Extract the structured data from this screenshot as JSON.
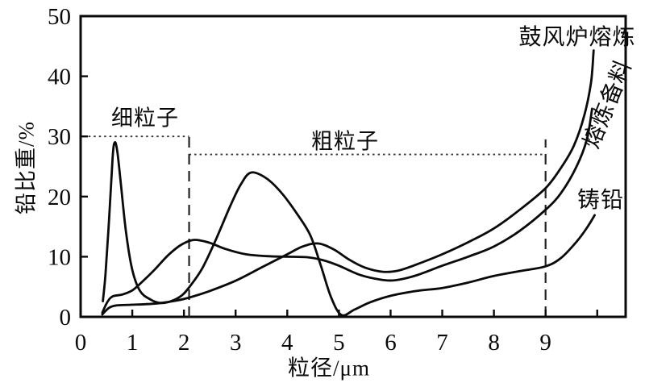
{
  "chart_data": {
    "type": "line",
    "title": "",
    "xlabel": "粒径/μm",
    "ylabel": "铅比重/%",
    "xlim": [
      0,
      10.55
    ],
    "ylim": [
      0,
      50
    ],
    "x_ticks": [
      0,
      1,
      2,
      3,
      4,
      5,
      6,
      7,
      8,
      9
    ],
    "x_unlabeled_ticks": [
      10
    ],
    "y_ticks": [
      0,
      10,
      20,
      30,
      40,
      50
    ],
    "grid": false,
    "legend_position": "labels-at-right-edge-of-curves",
    "line_color": "#0a0a0a",
    "series": [
      {
        "id": "blast-furnace-smelting",
        "name": "鼓风炉熔炼",
        "points": [
          [
            0.42,
            0.4
          ],
          [
            0.55,
            1.5
          ],
          [
            0.7,
            1.9
          ],
          [
            0.95,
            2.0
          ],
          [
            1.25,
            2.1
          ],
          [
            1.55,
            2.3
          ],
          [
            1.85,
            2.7
          ],
          [
            2.1,
            3.2
          ],
          [
            2.5,
            4.3
          ],
          [
            3.0,
            6.0
          ],
          [
            3.5,
            8.2
          ],
          [
            4.0,
            10.4
          ],
          [
            4.3,
            11.7
          ],
          [
            4.6,
            12.2
          ],
          [
            4.9,
            11.2
          ],
          [
            5.2,
            9.5
          ],
          [
            5.5,
            8.2
          ],
          [
            5.85,
            7.5
          ],
          [
            6.15,
            7.7
          ],
          [
            6.5,
            8.7
          ],
          [
            7.0,
            10.4
          ],
          [
            7.5,
            12.4
          ],
          [
            8.0,
            14.7
          ],
          [
            8.5,
            17.8
          ],
          [
            9.0,
            21.4
          ],
          [
            9.3,
            24.8
          ],
          [
            9.55,
            28.5
          ],
          [
            9.75,
            33.5
          ],
          [
            9.88,
            39.0
          ],
          [
            9.93,
            44.3
          ]
        ]
      },
      {
        "id": "smelting-preparation",
        "name": "熔炼备料",
        "points": [
          [
            0.42,
            0.7
          ],
          [
            0.52,
            2.5
          ],
          [
            0.62,
            3.4
          ],
          [
            0.8,
            3.7
          ],
          [
            1.0,
            4.4
          ],
          [
            1.2,
            5.9
          ],
          [
            1.45,
            8.0
          ],
          [
            1.7,
            10.3
          ],
          [
            1.95,
            12.0
          ],
          [
            2.2,
            12.8
          ],
          [
            2.5,
            12.3
          ],
          [
            2.8,
            11.3
          ],
          [
            3.2,
            10.4
          ],
          [
            3.6,
            10.1
          ],
          [
            4.0,
            10.0
          ],
          [
            4.4,
            9.9
          ],
          [
            4.7,
            9.4
          ],
          [
            5.0,
            8.5
          ],
          [
            5.4,
            7.0
          ],
          [
            5.8,
            6.2
          ],
          [
            6.1,
            6.1
          ],
          [
            6.5,
            6.9
          ],
          [
            7.0,
            8.5
          ],
          [
            7.5,
            10.0
          ],
          [
            8.0,
            11.7
          ],
          [
            8.5,
            14.3
          ],
          [
            9.0,
            17.8
          ],
          [
            9.3,
            20.6
          ],
          [
            9.6,
            25.0
          ],
          [
            9.8,
            29.5
          ],
          [
            9.9,
            34.6
          ]
        ]
      },
      {
        "id": "cast-lead",
        "name": "铸铅",
        "points": [
          [
            0.43,
            2.6
          ],
          [
            0.48,
            7.0
          ],
          [
            0.55,
            16.0
          ],
          [
            0.62,
            26.5
          ],
          [
            0.66,
            29.0
          ],
          [
            0.71,
            27.5
          ],
          [
            0.78,
            22.0
          ],
          [
            0.88,
            14.0
          ],
          [
            1.0,
            7.8
          ],
          [
            1.15,
            4.3
          ],
          [
            1.35,
            2.9
          ],
          [
            1.55,
            2.3
          ],
          [
            1.75,
            2.6
          ],
          [
            1.95,
            3.5
          ],
          [
            2.1,
            4.9
          ],
          [
            2.35,
            8.0
          ],
          [
            2.6,
            12.5
          ],
          [
            2.9,
            18.5
          ],
          [
            3.1,
            22.0
          ],
          [
            3.3,
            24.0
          ],
          [
            3.6,
            23.0
          ],
          [
            3.9,
            20.5
          ],
          [
            4.2,
            17.0
          ],
          [
            4.45,
            13.5
          ],
          [
            4.65,
            8.5
          ],
          [
            4.85,
            3.2
          ],
          [
            5.05,
            0.3
          ],
          [
            5.3,
            1.2
          ],
          [
            5.6,
            2.4
          ],
          [
            6.0,
            3.5
          ],
          [
            6.5,
            4.3
          ],
          [
            7.0,
            4.8
          ],
          [
            7.5,
            5.7
          ],
          [
            8.0,
            6.8
          ],
          [
            8.5,
            7.6
          ],
          [
            9.0,
            8.4
          ],
          [
            9.3,
            9.8
          ],
          [
            9.6,
            12.5
          ],
          [
            9.8,
            14.8
          ],
          [
            9.95,
            16.9
          ]
        ]
      }
    ],
    "annotations": {
      "regions": [
        {
          "label": "细粒子",
          "from_x": 0.05,
          "to_x": 2.1,
          "level_y": 30
        },
        {
          "label": "粗粒子",
          "from_x": 2.1,
          "to_x": 9,
          "level_y": 27
        }
      ],
      "dividers": [
        {
          "x": 2.1,
          "top_y": 30.8
        },
        {
          "x": 9,
          "top_y": 29.5
        }
      ]
    }
  }
}
